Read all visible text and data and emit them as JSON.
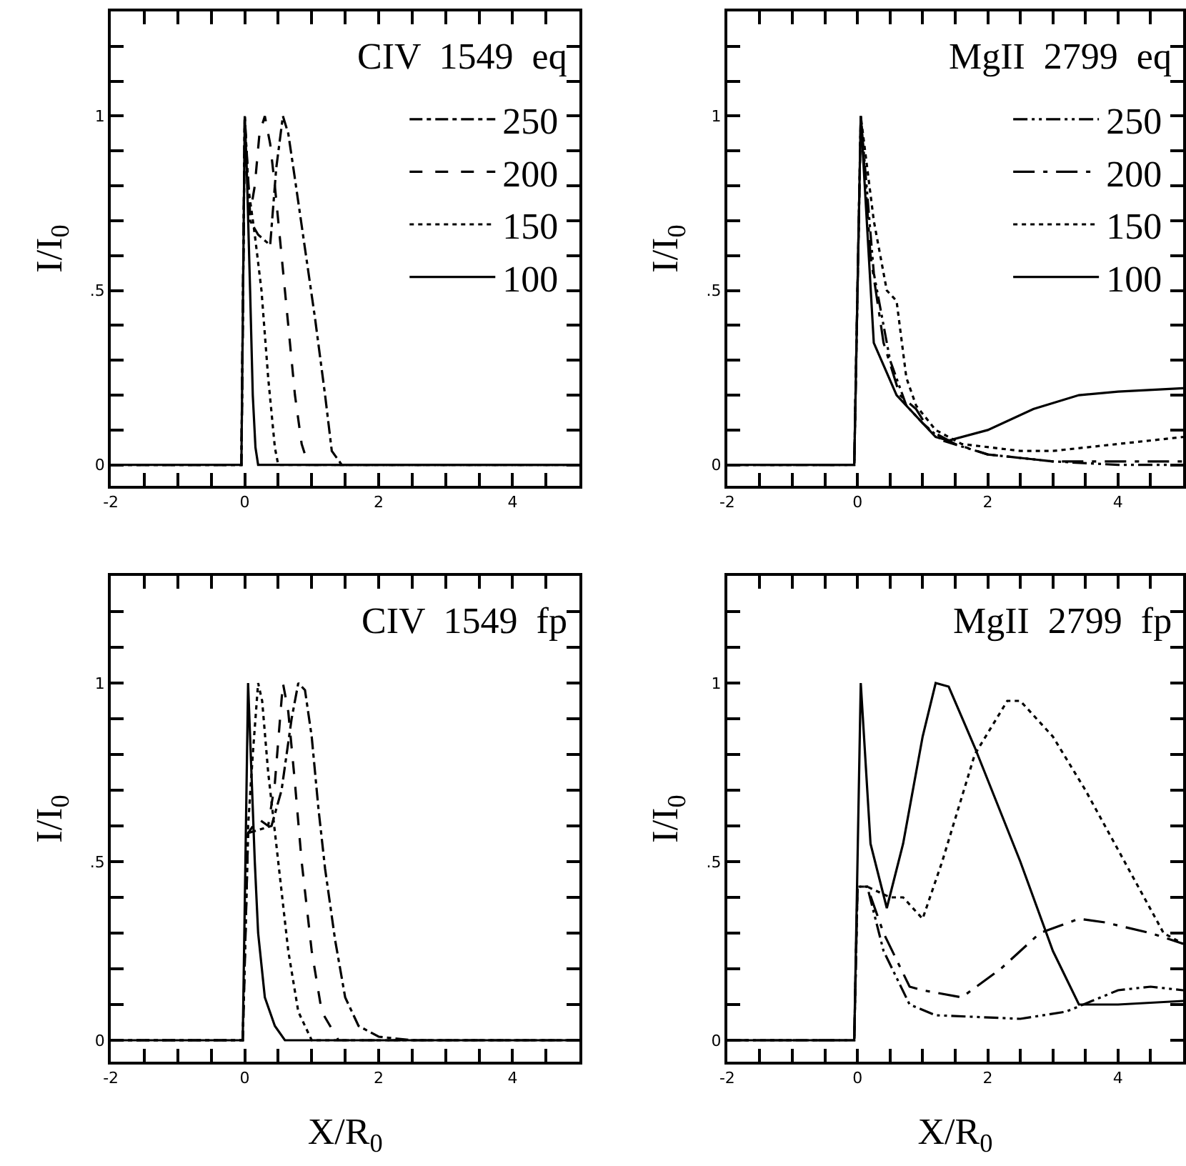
{
  "chart_data": [
    {
      "type": "line",
      "title": "CIV  1549  eq",
      "ylabel": "I/I$_{0}$",
      "xlim": [
        -2,
        5
      ],
      "ylim": [
        -0.06,
        1.3
      ],
      "legend": "top right",
      "xticks": [
        -2,
        {
          "value": -1.5,
          "label": null
        },
        {
          "value": -1,
          "label": null
        },
        {
          "value": -0.5,
          "label": null
        },
        {
          "value": 0,
          "label": "0"
        },
        {
          "value": 0.5,
          "label": null
        },
        {
          "value": 1,
          "label": null
        },
        {
          "value": 1.5,
          "label": null
        },
        2,
        {
          "value": 2.5,
          "label": null
        },
        {
          "value": 3,
          "label": null
        },
        {
          "value": 3.5,
          "label": null
        },
        4,
        {
          "value": 4.5,
          "label": null
        }
      ],
      "yticks": [
        {
          "value": 0,
          "label": "0"
        },
        {
          "value": 0.1,
          "label": null
        },
        {
          "value": 0.2,
          "label": null
        },
        {
          "value": 0.3,
          "label": null
        },
        {
          "value": 0.4,
          "label": null
        },
        {
          "value": 0.5,
          "label": ".5"
        },
        {
          "value": 0.6,
          "label": null
        },
        {
          "value": 0.7,
          "label": null
        },
        {
          "value": 0.8,
          "label": null
        },
        {
          "value": 0.9,
          "label": null
        },
        {
          "value": 1,
          "label": "1"
        },
        {
          "value": 1.1,
          "label": null
        },
        {
          "value": 1.2,
          "label": null
        }
      ],
      "series": [
        {
          "name": "250",
          "color": "#000000",
          "line_style": "dashdot",
          "x": [
            -2,
            -0.05,
            0,
            0.08,
            0.2,
            0.38,
            0.47,
            0.57,
            0.65,
            0.75,
            0.9,
            1.05,
            1.2,
            1.3,
            1.45,
            5
          ],
          "values": [
            0,
            0,
            1,
            0.7,
            0.66,
            0.63,
            0.85,
            1,
            0.95,
            0.82,
            0.62,
            0.42,
            0.2,
            0.04,
            0,
            0
          ]
        },
        {
          "name": "200",
          "color": "#000000",
          "line_style": "dashed",
          "x": [
            -2,
            -0.05,
            0,
            0.08,
            0.15,
            0.22,
            0.3,
            0.38,
            0.45,
            0.55,
            0.65,
            0.75,
            0.85,
            0.95,
            5
          ],
          "values": [
            0,
            0,
            1,
            0.72,
            0.8,
            0.95,
            1,
            0.92,
            0.8,
            0.6,
            0.4,
            0.2,
            0.06,
            0,
            0
          ]
        },
        {
          "name": "150",
          "color": "#000000",
          "line_style": "dotted",
          "x": [
            -2,
            -0.05,
            0,
            0.05,
            0.15,
            0.25,
            0.35,
            0.45,
            0.5,
            5
          ],
          "values": [
            0,
            0,
            1,
            0.8,
            0.66,
            0.5,
            0.25,
            0.05,
            0,
            0
          ]
        },
        {
          "name": "100",
          "color": "#000000",
          "line_style": "solid",
          "x": [
            -2,
            -0.05,
            0,
            0.03,
            0.08,
            0.12,
            0.16,
            0.2,
            5
          ],
          "values": [
            0,
            0,
            1,
            0.85,
            0.5,
            0.2,
            0.05,
            0,
            0
          ]
        }
      ]
    },
    {
      "type": "line",
      "title": "MgII  2799  eq",
      "ylabel": "I/I$_{0}$",
      "xlim": [
        -2,
        5
      ],
      "ylim": [
        -0.06,
        1.3
      ],
      "legend": "top right",
      "xticks": [
        -2,
        {
          "value": -1.5,
          "label": null
        },
        {
          "value": -1,
          "label": null
        },
        {
          "value": -0.5,
          "label": null
        },
        {
          "value": 0,
          "label": "0"
        },
        {
          "value": 0.5,
          "label": null
        },
        {
          "value": 1,
          "label": null
        },
        {
          "value": 1.5,
          "label": null
        },
        2,
        {
          "value": 2.5,
          "label": null
        },
        {
          "value": 3,
          "label": null
        },
        {
          "value": 3.5,
          "label": null
        },
        4,
        {
          "value": 4.5,
          "label": null
        }
      ],
      "yticks": [
        {
          "value": 0,
          "label": "0"
        },
        {
          "value": 0.1,
          "label": null
        },
        {
          "value": 0.2,
          "label": null
        },
        {
          "value": 0.3,
          "label": null
        },
        {
          "value": 0.4,
          "label": null
        },
        {
          "value": 0.5,
          "label": ".5"
        },
        {
          "value": 0.6,
          "label": null
        },
        {
          "value": 0.7,
          "label": null
        },
        {
          "value": 0.8,
          "label": null
        },
        {
          "value": 0.9,
          "label": null
        },
        {
          "value": 1,
          "label": "1"
        },
        {
          "value": 1.1,
          "label": null
        },
        {
          "value": 1.2,
          "label": null
        }
      ],
      "series": [
        {
          "name": "250",
          "color": "#000000",
          "line_style": "dashdotdot",
          "x": [
            -2,
            -0.05,
            0.05,
            0.25,
            0.5,
            0.75,
            1.0,
            1.3,
            2,
            3,
            4,
            5
          ],
          "values": [
            0,
            0,
            1,
            0.55,
            0.3,
            0.17,
            0.12,
            0.07,
            0.03,
            0.01,
            0,
            0
          ]
        },
        {
          "name": "200",
          "color": "#000000",
          "line_style": "longdashdot",
          "x": [
            -2,
            -0.05,
            0.05,
            0.2,
            0.4,
            0.65,
            0.9,
            1.1,
            1.5,
            2,
            3,
            4,
            5
          ],
          "values": [
            0,
            0,
            1,
            0.6,
            0.35,
            0.2,
            0.16,
            0.1,
            0.06,
            0.03,
            0.01,
            0.01,
            0.01
          ]
        },
        {
          "name": "150",
          "color": "#000000",
          "line_style": "dotted",
          "x": [
            -2,
            -0.05,
            0.05,
            0.25,
            0.45,
            0.6,
            0.75,
            0.9,
            1.2,
            1.6,
            2.5,
            3,
            4,
            5
          ],
          "values": [
            0,
            0,
            1,
            0.7,
            0.5,
            0.47,
            0.25,
            0.17,
            0.1,
            0.06,
            0.04,
            0.04,
            0.06,
            0.08
          ]
        },
        {
          "name": "100",
          "color": "#000000",
          "line_style": "solid",
          "x": [
            -2,
            -0.05,
            0.05,
            0.25,
            0.6,
            1.0,
            1.2,
            1.4,
            2.0,
            2.7,
            3.4,
            4.0,
            5
          ],
          "values": [
            0,
            0,
            1,
            0.35,
            0.2,
            0.12,
            0.08,
            0.07,
            0.1,
            0.16,
            0.2,
            0.21,
            0.22
          ]
        }
      ]
    },
    {
      "type": "line",
      "title": "CIV  1549  fp",
      "xlabel": "X/R$_{0}$",
      "ylabel": "I/I$_{0}$",
      "xlim": [
        -2,
        5
      ],
      "ylim": [
        -0.06,
        1.3
      ],
      "xticks": [
        -2,
        {
          "value": -1.5,
          "label": null
        },
        {
          "value": -1,
          "label": null
        },
        {
          "value": -0.5,
          "label": null
        },
        {
          "value": 0,
          "label": "0"
        },
        {
          "value": 0.5,
          "label": null
        },
        {
          "value": 1,
          "label": null
        },
        {
          "value": 1.5,
          "label": null
        },
        2,
        {
          "value": 2.5,
          "label": null
        },
        {
          "value": 3,
          "label": null
        },
        {
          "value": 3.5,
          "label": null
        },
        4,
        {
          "value": 4.5,
          "label": null
        }
      ],
      "yticks": [
        {
          "value": 0,
          "label": "0"
        },
        {
          "value": 0.1,
          "label": null
        },
        {
          "value": 0.2,
          "label": null
        },
        {
          "value": 0.3,
          "label": null
        },
        {
          "value": 0.4,
          "label": null
        },
        {
          "value": 0.5,
          "label": ".5"
        },
        {
          "value": 0.6,
          "label": null
        },
        {
          "value": 0.7,
          "label": null
        },
        {
          "value": 0.8,
          "label": null
        },
        {
          "value": 0.9,
          "label": null
        },
        {
          "value": 1,
          "label": "1"
        },
        {
          "value": 1.1,
          "label": null
        },
        {
          "value": 1.2,
          "label": null
        }
      ],
      "series": [
        {
          "color": "#000000",
          "line_style": "dashdot",
          "x": [
            -2,
            -0.03,
            0.05,
            0.4,
            0.55,
            0.7,
            0.8,
            0.9,
            1.0,
            1.1,
            1.2,
            1.35,
            1.5,
            1.7,
            2.0,
            2.5,
            5
          ],
          "values": [
            0,
            0,
            0.58,
            0.6,
            0.7,
            0.9,
            1,
            0.98,
            0.85,
            0.65,
            0.48,
            0.28,
            0.12,
            0.04,
            0.01,
            0,
            0
          ]
        },
        {
          "color": "#000000",
          "line_style": "dashed",
          "x": [
            -2,
            -0.03,
            0.05,
            0.2,
            0.35,
            0.45,
            0.57,
            0.65,
            0.75,
            0.85,
            1.0,
            1.15,
            1.4,
            5
          ],
          "values": [
            0,
            0,
            0.58,
            0.62,
            0.6,
            0.72,
            1,
            0.92,
            0.72,
            0.5,
            0.25,
            0.08,
            0,
            0
          ]
        },
        {
          "color": "#000000",
          "line_style": "dotted",
          "x": [
            -2,
            -0.03,
            0.05,
            0.12,
            0.2,
            0.26,
            0.35,
            0.5,
            0.65,
            0.8,
            1.0,
            5
          ],
          "values": [
            0,
            0,
            0.6,
            0.8,
            1,
            0.95,
            0.75,
            0.5,
            0.25,
            0.08,
            0,
            0
          ]
        },
        {
          "color": "#000000",
          "line_style": "solid",
          "x": [
            -2,
            -0.03,
            0.05,
            0.1,
            0.15,
            0.2,
            0.3,
            0.45,
            0.6,
            5
          ],
          "values": [
            0,
            0,
            1,
            0.75,
            0.5,
            0.3,
            0.12,
            0.04,
            0,
            0
          ]
        }
      ]
    },
    {
      "type": "line",
      "title": "MgII  2799  fp",
      "xlabel": "X/R$_{0}$",
      "ylabel": "I/I$_{0}$",
      "xlim": [
        -2,
        5
      ],
      "ylim": [
        -0.06,
        1.3
      ],
      "xticks": [
        -2,
        {
          "value": -1.5,
          "label": null
        },
        {
          "value": -1,
          "label": null
        },
        {
          "value": -0.5,
          "label": null
        },
        {
          "value": 0,
          "label": "0"
        },
        {
          "value": 0.5,
          "label": null
        },
        {
          "value": 1,
          "label": null
        },
        {
          "value": 1.5,
          "label": null
        },
        2,
        {
          "value": 2.5,
          "label": null
        },
        {
          "value": 3,
          "label": null
        },
        {
          "value": 3.5,
          "label": null
        },
        4,
        {
          "value": 4.5,
          "label": null
        }
      ],
      "yticks": [
        {
          "value": 0,
          "label": "0"
        },
        {
          "value": 0.1,
          "label": null
        },
        {
          "value": 0.2,
          "label": null
        },
        {
          "value": 0.3,
          "label": null
        },
        {
          "value": 0.4,
          "label": null
        },
        {
          "value": 0.5,
          "label": ".5"
        },
        {
          "value": 0.6,
          "label": null
        },
        {
          "value": 0.7,
          "label": null
        },
        {
          "value": 0.8,
          "label": null
        },
        {
          "value": 0.9,
          "label": null
        },
        {
          "value": 1,
          "label": "1"
        },
        {
          "value": 1.1,
          "label": null
        },
        {
          "value": 1.2,
          "label": null
        }
      ],
      "series": [
        {
          "color": "#000000",
          "line_style": "dashdotdot",
          "x": [
            -2,
            -0.05,
            0,
            0.15,
            0.4,
            0.8,
            1.2,
            2.5,
            3.2,
            4,
            4.5,
            5
          ],
          "values": [
            0,
            0,
            0.43,
            0.43,
            0.25,
            0.1,
            0.07,
            0.06,
            0.08,
            0.14,
            0.15,
            0.14
          ]
        },
        {
          "color": "#000000",
          "line_style": "longdashdot",
          "x": [
            -2,
            -0.05,
            0,
            0.15,
            0.4,
            0.8,
            1.0,
            1.6,
            2.2,
            2.8,
            3.4,
            3.8,
            4.5,
            5
          ],
          "values": [
            0,
            0,
            0.43,
            0.43,
            0.3,
            0.15,
            0.14,
            0.12,
            0.2,
            0.3,
            0.34,
            0.33,
            0.3,
            0.27
          ]
        },
        {
          "color": "#000000",
          "line_style": "dotted",
          "x": [
            -2,
            -0.05,
            0,
            0.15,
            0.5,
            0.7,
            1.0,
            1.3,
            1.8,
            2.3,
            2.5,
            3.0,
            3.5,
            4.1,
            4.7,
            5
          ],
          "values": [
            0,
            0,
            0.43,
            0.43,
            0.4,
            0.4,
            0.34,
            0.5,
            0.8,
            0.95,
            0.95,
            0.85,
            0.7,
            0.5,
            0.3,
            0.27
          ]
        },
        {
          "color": "#000000",
          "line_style": "solid",
          "x": [
            -2,
            -0.05,
            0.05,
            0.2,
            0.45,
            0.7,
            1.0,
            1.2,
            1.4,
            1.8,
            2.5,
            3.0,
            3.4,
            4.0,
            5
          ],
          "values": [
            0,
            0,
            1,
            0.55,
            0.37,
            0.55,
            0.85,
            1,
            0.99,
            0.82,
            0.5,
            0.25,
            0.1,
            0.1,
            0.11
          ]
        }
      ]
    }
  ]
}
